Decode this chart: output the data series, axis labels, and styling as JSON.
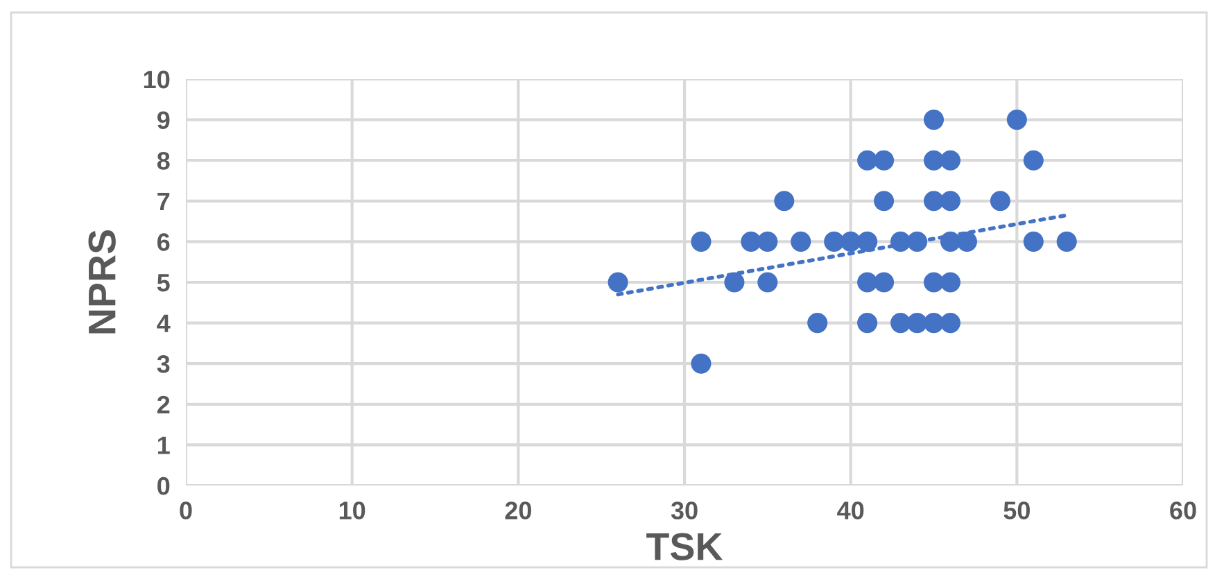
{
  "chart_data": {
    "type": "scatter",
    "xlabel": "TSK",
    "ylabel": "NPRS",
    "xlim": [
      0,
      60
    ],
    "xticks": [
      0,
      10,
      20,
      30,
      40,
      50,
      60
    ],
    "ylim": [
      0,
      10
    ],
    "yticks": [
      0,
      1,
      2,
      3,
      4,
      5,
      6,
      7,
      8,
      9,
      10
    ],
    "grid": true,
    "series": [
      {
        "marker": "circle",
        "color": "#4472c4",
        "x": [
          26,
          31,
          31,
          33,
          34,
          35,
          35,
          36,
          37,
          38,
          39,
          40,
          41,
          41,
          41,
          41,
          42,
          42,
          42,
          43,
          43,
          44,
          44,
          45,
          45,
          45,
          45,
          45,
          46,
          46,
          46,
          46,
          46,
          47,
          49,
          50,
          51,
          51,
          53
        ],
        "values": [
          5,
          6,
          3,
          5,
          6,
          6,
          5,
          7,
          6,
          4,
          6,
          6,
          6,
          8,
          5,
          4,
          8,
          7,
          5,
          6,
          4,
          6,
          4,
          9,
          8,
          7,
          5,
          4,
          8,
          7,
          6,
          5,
          4,
          6,
          7,
          9,
          8,
          6,
          6
        ]
      },
      {
        "type": "line",
        "color": "#4472c4",
        "line_style": "dotted",
        "x": [
          26,
          53
        ],
        "values": [
          4.7,
          6.65
        ]
      }
    ]
  }
}
